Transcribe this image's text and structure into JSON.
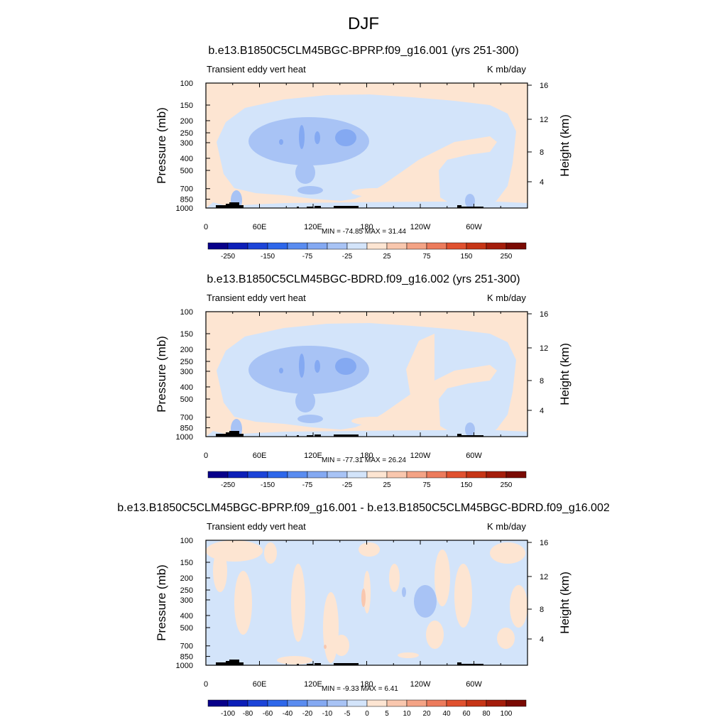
{
  "page": {
    "title": "DJF"
  },
  "panels": [
    {
      "title": "b.e13.B1850C5CLM45BGC-BPRP.f09_g16.001 (yrs 251-300)",
      "left_label": "Transient eddy vert heat",
      "right_label": "K mb/day",
      "stats": "MIN = -74.85  MAX =  31.44",
      "levels": [
        "-250",
        "-150",
        "-75",
        "-25",
        "25",
        "75",
        "150",
        "250"
      ]
    },
    {
      "title": "b.e13.B1850C5CLM45BGC-BDRD.f09_g16.002 (yrs 251-300)",
      "left_label": "Transient eddy vert heat",
      "right_label": "K mb/day",
      "stats": "MIN = -77.31  MAX =  26.24",
      "levels": [
        "-250",
        "-150",
        "-75",
        "-25",
        "25",
        "75",
        "150",
        "250"
      ]
    },
    {
      "title": "b.e13.B1850C5CLM45BGC-BPRP.f09_g16.001 - b.e13.B1850C5CLM45BGC-BDRD.f09_g16.002",
      "left_label": "Transient eddy vert heat",
      "right_label": "K mb/day",
      "stats": "MIN =  -9.33  MAX =   6.41",
      "levels": [
        "-100",
        "-80",
        "-60",
        "-40",
        "-20",
        "-10",
        "-5",
        "0",
        "5",
        "10",
        "20",
        "40",
        "60",
        "80",
        "100"
      ]
    }
  ],
  "chart_data": {
    "type": "heatmap",
    "xlabel": "",
    "ylabel": "Pressure (mb)",
    "ylabel_right": "Height (km)",
    "x_ticks": [
      "0",
      "60E",
      "120E",
      "180",
      "120W",
      "60W"
    ],
    "y_ticks": [
      "100",
      "150",
      "200",
      "250",
      "300",
      "400",
      "500",
      "700",
      "850",
      "1000"
    ],
    "y_right_ticks": [
      "16",
      "12",
      "8",
      "4"
    ],
    "xlim": [
      0,
      360
    ],
    "ylim": [
      1000,
      100
    ],
    "y_scale": "log",
    "colors": {
      "neg3": "#84a9f2",
      "neg2": "#a8c3f5",
      "neg1": "#d3e4fa",
      "pos1": "#fde5d2",
      "pos2": "#f9c7ae",
      "terrain": "#000000",
      "cbar": [
        "#08008a",
        "#0c1fb8",
        "#1c44d8",
        "#2e67ea",
        "#5a8cf0",
        "#84a9f2",
        "#a8c3f5",
        "#d3e4fa",
        "#fde5d2",
        "#f9c7ae",
        "#f4a385",
        "#ec7b5c",
        "#e0512f",
        "#c63516",
        "#a41d0b",
        "#7a0a03"
      ]
    }
  }
}
